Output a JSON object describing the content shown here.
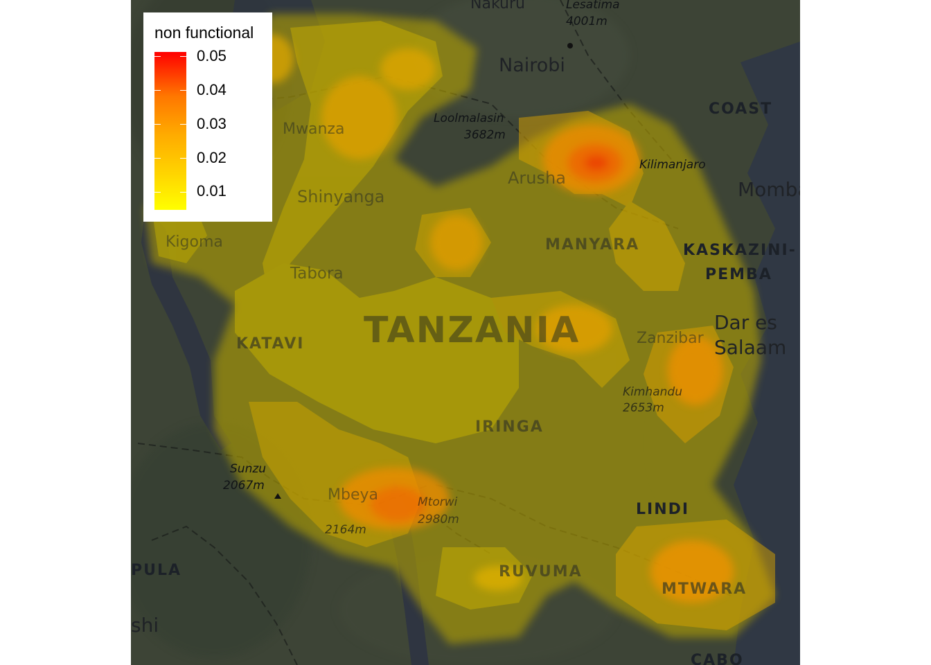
{
  "legend": {
    "title": "non functional",
    "breaks": [
      "0.05",
      "0.04",
      "0.03",
      "0.02",
      "0.01"
    ]
  },
  "colors": {
    "gradient_low": "#ffff00",
    "gradient_mid": "#ffaa00",
    "gradient_high": "#ff0000",
    "basemap_land": "#3d4436",
    "basemap_water": "#303844"
  },
  "map_labels": {
    "nakuru": "Nakuru",
    "lesatima": "Lesatima",
    "lesatima_elev": "4001m",
    "nairobi": "Nairobi",
    "coast": "COAST",
    "loolmalasin": "Loolmalasin",
    "loolmalasin_elev": "3682m",
    "mwanza": "Mwanza",
    "kilimanjaro": "Kilimanjaro",
    "arusha": "Arusha",
    "mombasa": "Momba",
    "shinyanga": "Shinyanga",
    "kigoma": "Kigoma",
    "manyara": "MANYARA",
    "kaskazini": "KASKAZINI-",
    "pemba": "PEMBA",
    "tabora": "Tabora",
    "tanzania": "TANZANIA",
    "dar_es": "Dar es",
    "salaam": "Salaam",
    "katavi": "KATAVI",
    "zanzibar": "Zanzibar",
    "kimhandu": "Kimhandu",
    "kimhandu_elev": "2653m",
    "iringa": "IRINGA",
    "sunzu": "Sunzu",
    "sunzu_elev": "2067m",
    "mbeya": "Mbeya",
    "mtorwi": "Mtorwi",
    "mtorwi_elev": "2980m",
    "mbeya_elev": "2164m",
    "lindi": "LINDI",
    "pula": "PULA",
    "ruvuma": "RUVUMA",
    "mtwara": "MTWARA",
    "shi": "shi",
    "cabo": "CABO"
  }
}
